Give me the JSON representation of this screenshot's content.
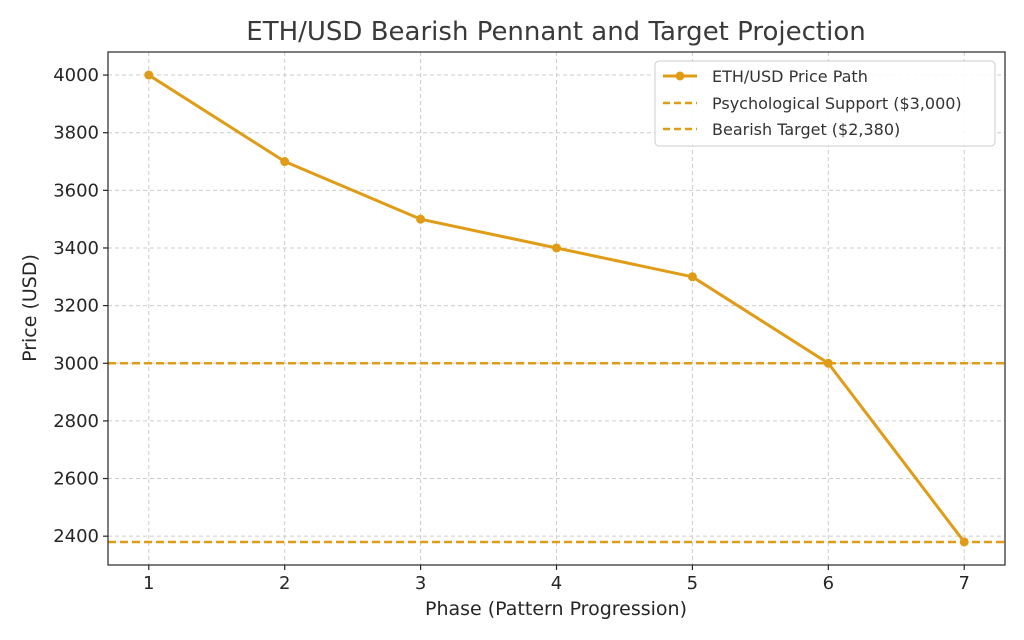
{
  "chart_data": {
    "type": "line",
    "title": "ETH/USD Bearish Pennant and Target Projection",
    "xlabel": "Phase (Pattern Progression)",
    "ylabel": "Price (USD)",
    "x": [
      1,
      2,
      3,
      4,
      5,
      6,
      7
    ],
    "x_ticks": [
      "1",
      "2",
      "3",
      "4",
      "5",
      "6",
      "7"
    ],
    "y_ticks": [
      "2400",
      "2600",
      "2800",
      "3000",
      "3200",
      "3400",
      "3600",
      "3800",
      "4000"
    ],
    "xlim": [
      0.7,
      7.3
    ],
    "ylim": [
      2300,
      4080
    ],
    "grid": true,
    "legend_position": "top-right",
    "series": [
      {
        "name": "ETH/USD Price Path",
        "values": [
          4000,
          3700,
          3500,
          3400,
          3300,
          3000,
          2380
        ],
        "color": "#e09c16",
        "style": "solid",
        "marker": "circle"
      }
    ],
    "reference_lines": [
      {
        "name": "Psychological Support ($3,000)",
        "y": 3000,
        "color": "#e09c16",
        "style": "dashed"
      },
      {
        "name": "Bearish Target ($2,380)",
        "y": 2380,
        "color": "#e09c16",
        "style": "dashed"
      }
    ]
  }
}
